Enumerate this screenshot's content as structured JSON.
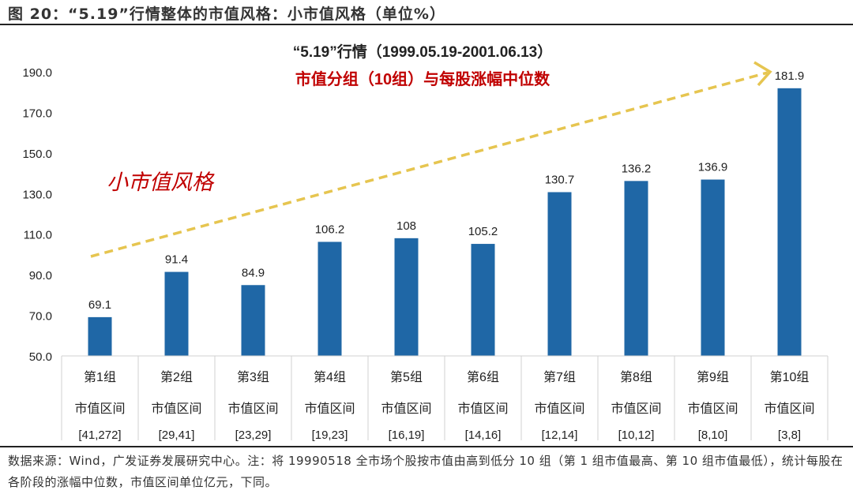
{
  "figure_title": "图 20：“5.19”行情整体的市值风格：小市值风格（单位%）",
  "footer_note": "数据来源：Wind，广发证券发展研究中心。注：将 19990518 全市场个股按市值由高到低分 10 组（第 1 组市值最高、第 10 组市值最低），统计每股在各阶段的涨幅中位数，市值区间单位亿元，下同。",
  "chart_data": {
    "type": "bar",
    "title": "“5.19”行情（1999.05.19-2001.06.13）",
    "subtitle": "市值分组（10组）与每股涨幅中位数",
    "annotation": "小市值风格",
    "categories": [
      {
        "group": "第1组",
        "label": "市值区间",
        "range": "[41,272]"
      },
      {
        "group": "第2组",
        "label": "市值区间",
        "range": "[29,41]"
      },
      {
        "group": "第3组",
        "label": "市值区间",
        "range": "[23,29]"
      },
      {
        "group": "第4组",
        "label": "市值区间",
        "range": "[19,23]"
      },
      {
        "group": "第5组",
        "label": "市值区间",
        "range": "[16,19]"
      },
      {
        "group": "第6组",
        "label": "市值区间",
        "range": "[14,16]"
      },
      {
        "group": "第7组",
        "label": "市值区间",
        "range": "[12,14]"
      },
      {
        "group": "第8组",
        "label": "市值区间",
        "range": "[10,12]"
      },
      {
        "group": "第9组",
        "label": "市值区间",
        "range": "[8,10]"
      },
      {
        "group": "第10组",
        "label": "市值区间",
        "range": "[3,8]"
      }
    ],
    "values": [
      69.1,
      91.4,
      84.9,
      106.2,
      108.0,
      105.2,
      130.7,
      136.2,
      136.9,
      181.9
    ],
    "ylim": [
      50,
      190
    ],
    "yticks": [
      "50.0",
      "70.0",
      "90.0",
      "110.0",
      "130.0",
      "150.0",
      "170.0",
      "190.0"
    ],
    "grid": false,
    "colors": {
      "bar": "#1f67a6",
      "subtitle": "#c00000",
      "annotation": "#c00000",
      "arrow": "#e6c550"
    }
  }
}
